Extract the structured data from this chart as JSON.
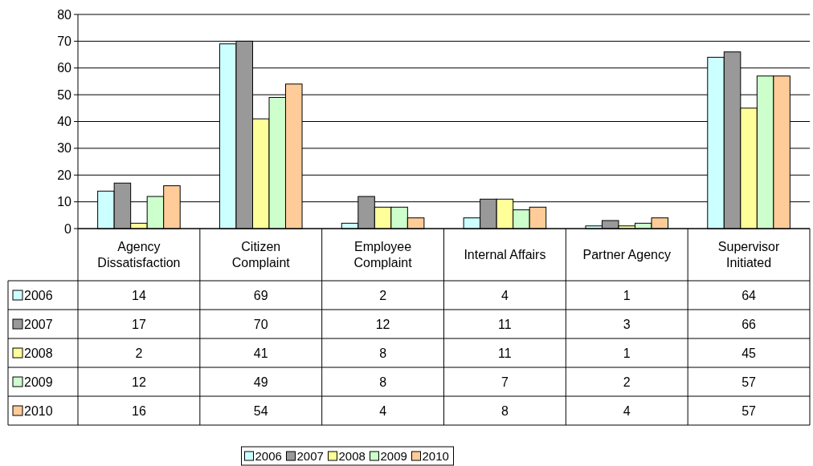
{
  "chart_data": {
    "type": "bar",
    "categories": [
      "Agency Dissatisfaction",
      "Citizen Complaint",
      "Employee Complaint",
      "Internal Affairs",
      "Partner Agency",
      "Supervisor Initiated"
    ],
    "series": [
      {
        "name": "2006",
        "color": "#ccffff",
        "values": [
          14,
          69,
          2,
          4,
          1,
          64
        ]
      },
      {
        "name": "2007",
        "color": "#999999",
        "values": [
          17,
          70,
          12,
          11,
          3,
          66
        ]
      },
      {
        "name": "2008",
        "color": "#ffff99",
        "values": [
          2,
          41,
          8,
          11,
          1,
          45
        ]
      },
      {
        "name": "2009",
        "color": "#ccffcc",
        "values": [
          12,
          49,
          8,
          7,
          2,
          57
        ]
      },
      {
        "name": "2010",
        "color": "#ffcc99",
        "values": [
          16,
          54,
          4,
          8,
          4,
          57
        ]
      }
    ],
    "ylim": [
      0,
      80
    ],
    "yticks": [
      0,
      10,
      20,
      30,
      40,
      50,
      60,
      70,
      80
    ],
    "grid": "y",
    "legend": "bottom",
    "data_labels": true
  }
}
